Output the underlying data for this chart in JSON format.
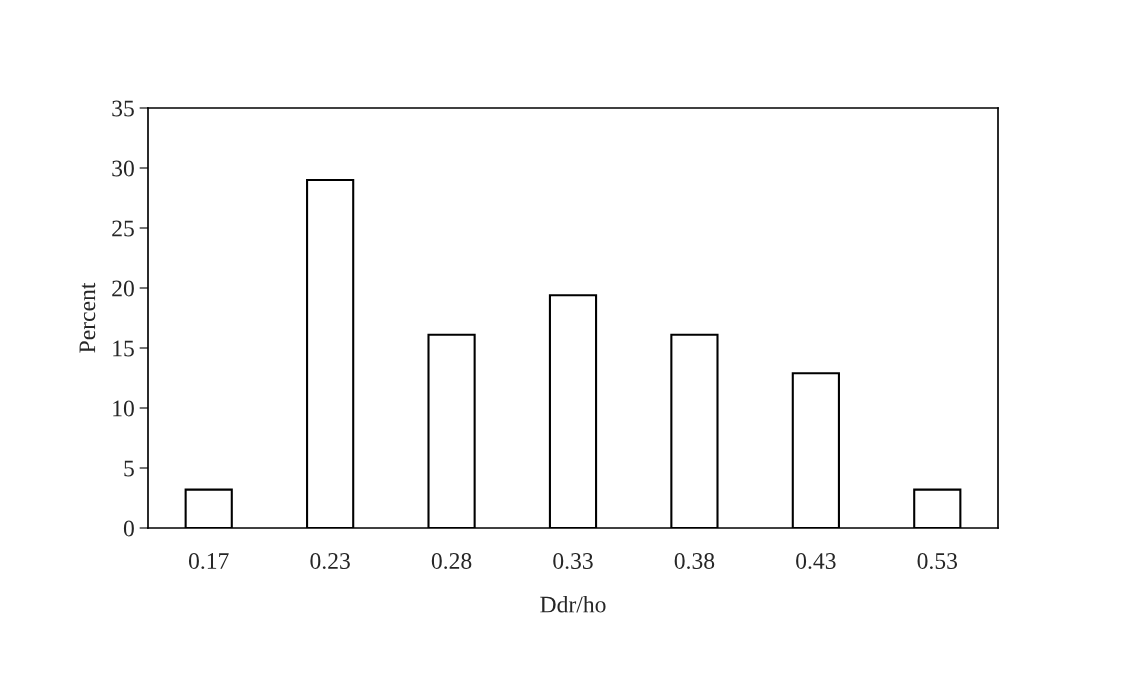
{
  "chart_data": {
    "type": "bar",
    "xlabel": "Ddr/ho",
    "ylabel": "Percent",
    "categories": [
      "0.17",
      "0.23",
      "0.28",
      "0.33",
      "0.38",
      "0.43",
      "0.53"
    ],
    "values": [
      3.2,
      29.0,
      16.1,
      19.4,
      16.1,
      12.9,
      3.2
    ],
    "color": "#ffffff",
    "ylim": [
      0,
      35
    ],
    "yticks": [
      0,
      5,
      10,
      15,
      20,
      25,
      30,
      35
    ],
    "grid": false
  }
}
